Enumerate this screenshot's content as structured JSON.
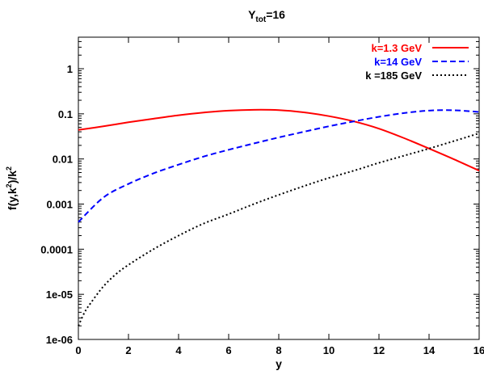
{
  "chart_data": {
    "type": "line",
    "title": {
      "main": "Y",
      "sub": "tot",
      "suffix": "=16"
    },
    "xlabel": "y",
    "ylabel": {
      "t1": "f(y,k",
      "s1": "2",
      "t2": ")/k",
      "s2": "2"
    },
    "xlim": [
      0,
      16
    ],
    "ylim": [
      1e-06,
      5
    ],
    "yscale": "log",
    "xticks": [
      0,
      2,
      4,
      6,
      8,
      10,
      12,
      14,
      16
    ],
    "xtick_labels": [
      "0",
      "2",
      "4",
      "6",
      "8",
      "10",
      "12",
      "14",
      "16"
    ],
    "yticks": [
      1e-06,
      1e-05,
      0.0001,
      0.001,
      0.01,
      0.1,
      1
    ],
    "ytick_labels": [
      "1e-06",
      "1e-05",
      "0.0001",
      "0.001",
      "0.01",
      "0.1",
      "1"
    ],
    "grid": false,
    "legend_position": "top-right",
    "series": [
      {
        "name": "k=1.3 GeV",
        "color": "#ff0000",
        "dash": "solid",
        "x": [
          0,
          1,
          2,
          3,
          4,
          5,
          6,
          7,
          8,
          9,
          10,
          11,
          12,
          13,
          14,
          15,
          16
        ],
        "y": [
          0.044,
          0.053,
          0.065,
          0.078,
          0.093,
          0.107,
          0.118,
          0.123,
          0.121,
          0.108,
          0.089,
          0.068,
          0.047,
          0.029,
          0.017,
          0.0098,
          0.0055
        ]
      },
      {
        "name": "k=14 GeV",
        "color": "#0000ff",
        "dash": "dashed",
        "x": [
          0,
          1,
          2,
          3,
          4,
          5,
          6,
          7,
          8,
          9,
          10,
          11,
          12,
          13,
          14,
          15,
          16
        ],
        "y": [
          0.0004,
          0.0014,
          0.0028,
          0.0048,
          0.0075,
          0.0113,
          0.016,
          0.022,
          0.03,
          0.04,
          0.053,
          0.068,
          0.086,
          0.104,
          0.118,
          0.12,
          0.11
        ]
      },
      {
        "name": "k =185 GeV",
        "color": "#000000",
        "dash": "dotted",
        "x": [
          0,
          0.25,
          0.5,
          1,
          1.5,
          2,
          3,
          4,
          5,
          6,
          7,
          8,
          9,
          10,
          11,
          12,
          13,
          14,
          15,
          16
        ],
        "y": [
          2e-06,
          4e-06,
          6.5e-06,
          1.5e-05,
          2.8e-05,
          4.5e-05,
          0.0001,
          0.0002,
          0.00037,
          0.0006,
          0.001,
          0.0016,
          0.0025,
          0.0038,
          0.0055,
          0.0082,
          0.0118,
          0.017,
          0.025,
          0.037
        ]
      }
    ]
  }
}
